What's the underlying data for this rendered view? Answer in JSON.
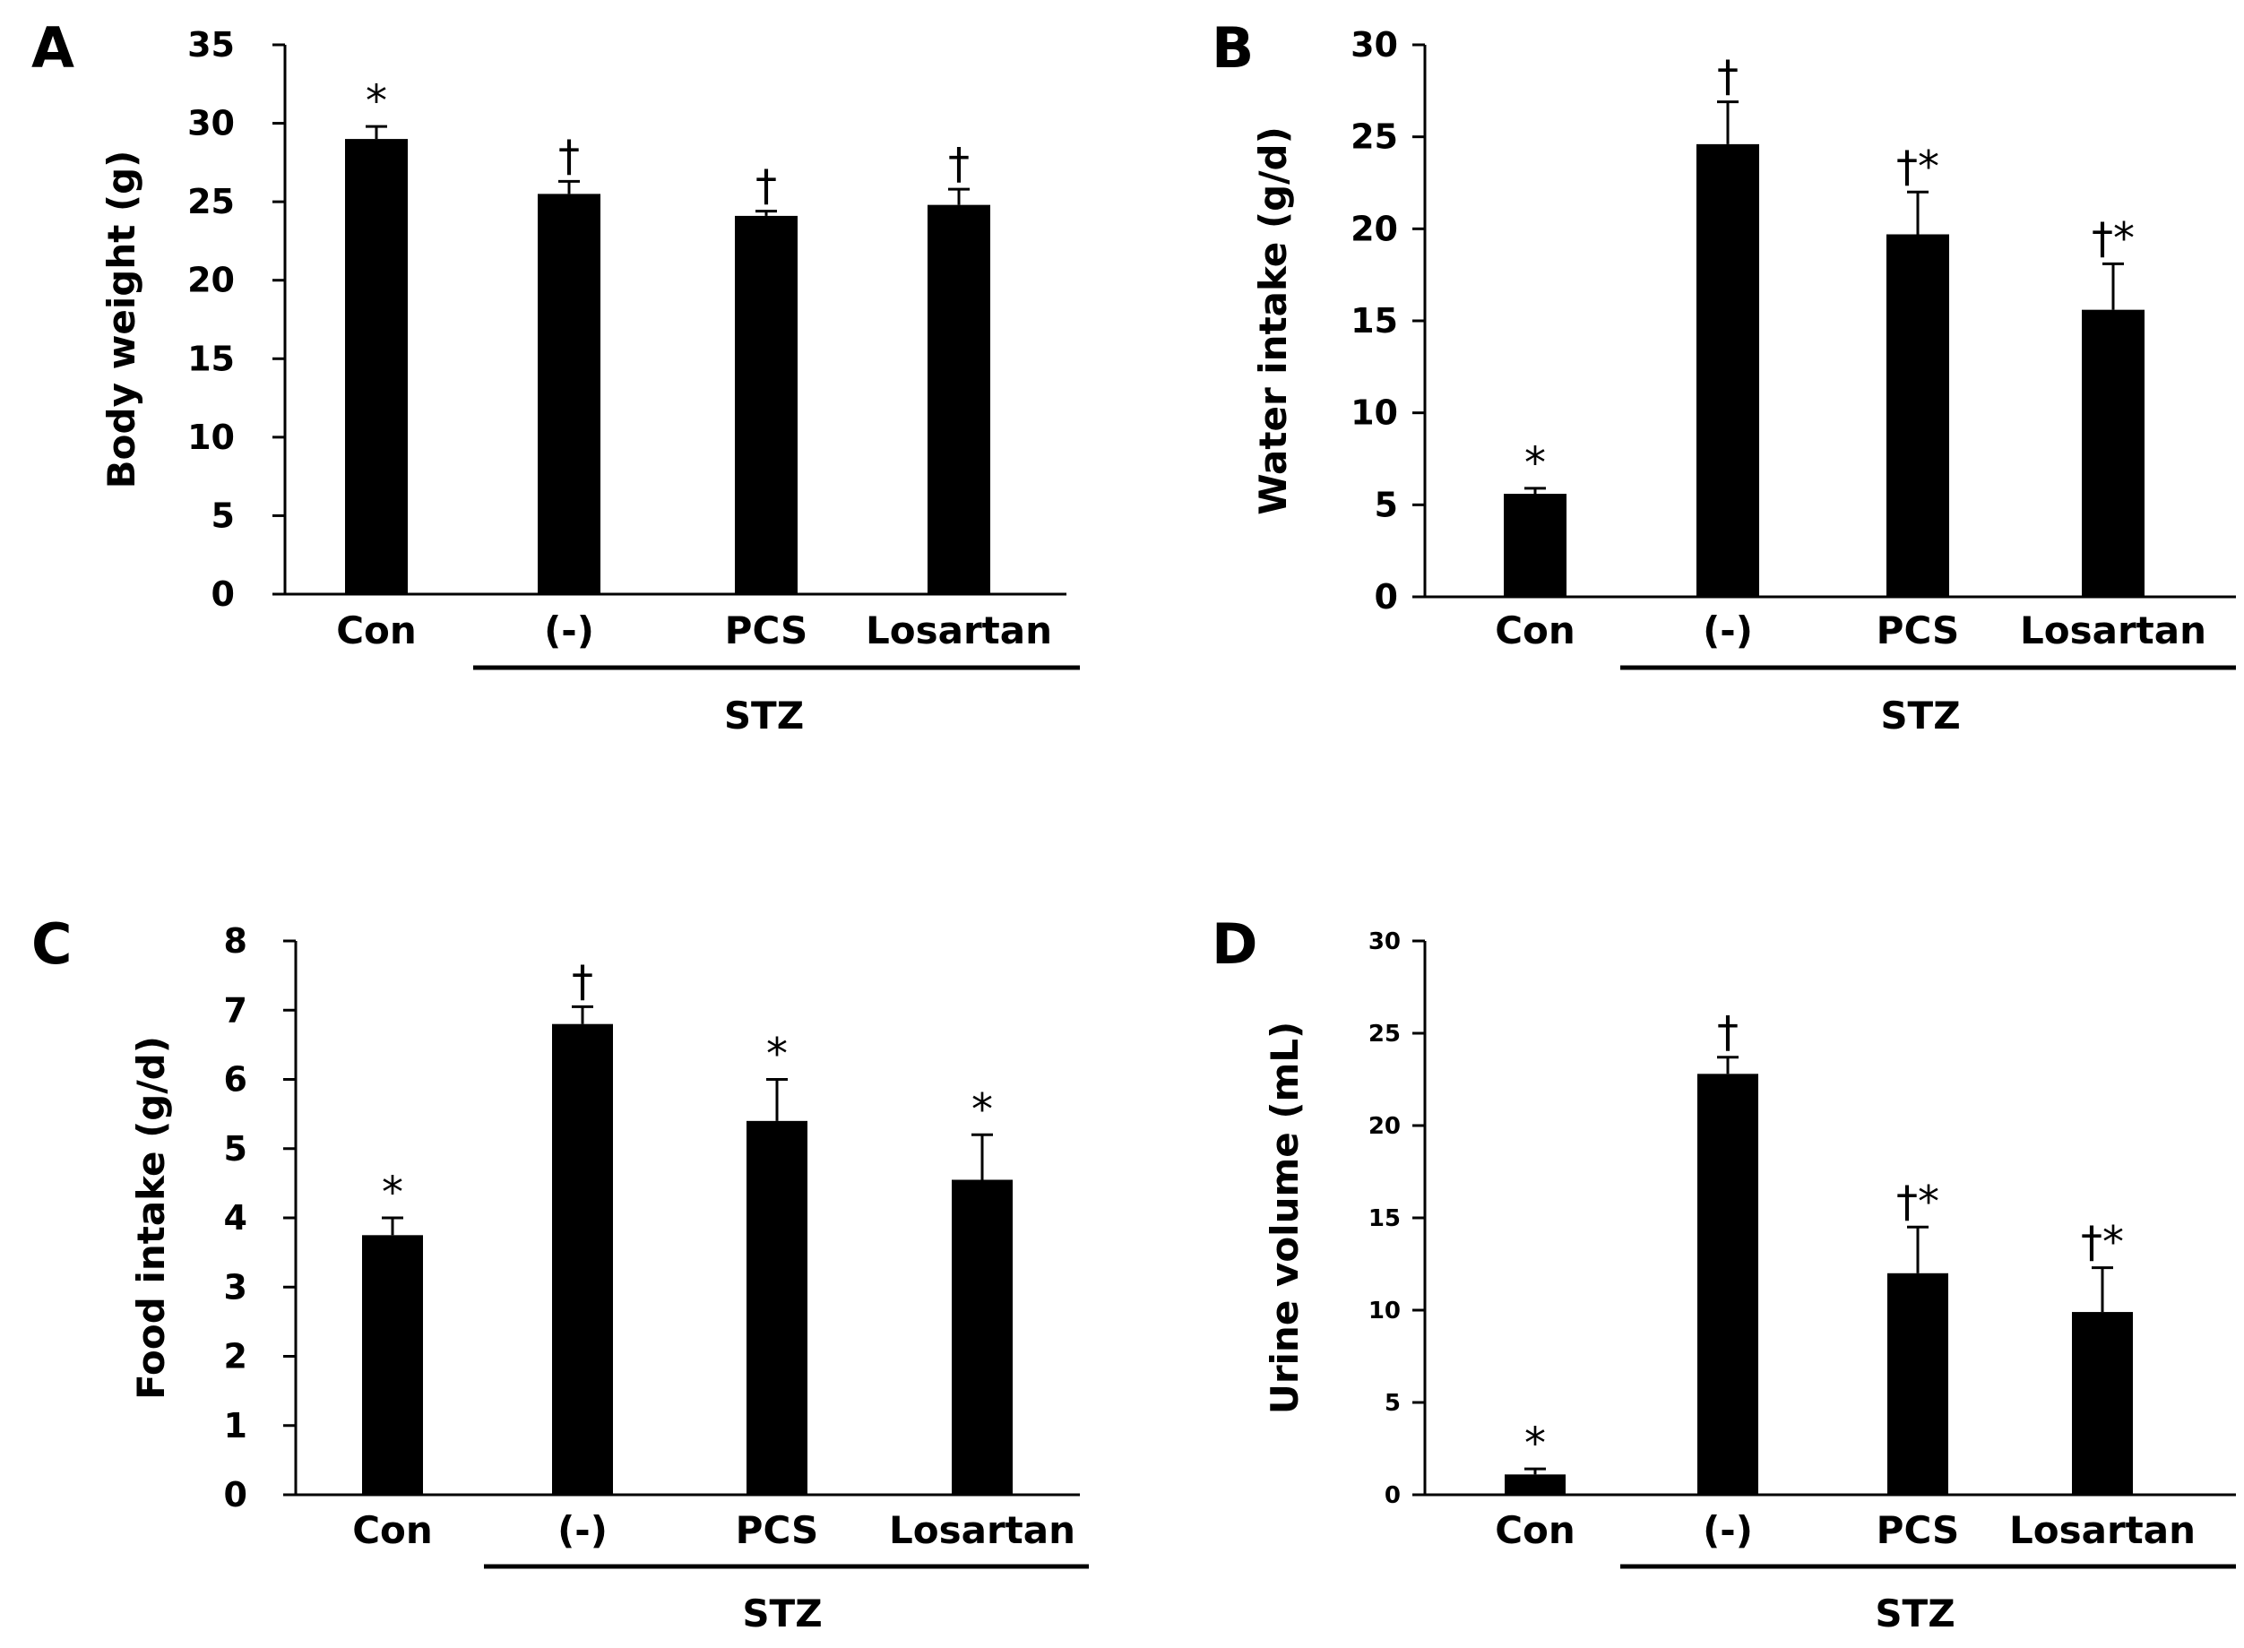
{
  "colors": {
    "bar": "#000000",
    "axis": "#000000",
    "background": "#ffffff"
  },
  "chart_data": [
    {
      "panel": "A",
      "type": "bar",
      "title": "",
      "xlabel": "",
      "ylabel": "Body weight (g)",
      "ylim": [
        0,
        35
      ],
      "yticks": [
        0,
        5,
        10,
        15,
        20,
        25,
        30,
        35
      ],
      "ytick_labels": [
        "0",
        "5",
        "10",
        "15",
        "20",
        "25",
        "30",
        "35"
      ],
      "categories": [
        "Con",
        "(-)",
        "PCS",
        "Losartan"
      ],
      "values": [
        29.0,
        25.5,
        24.1,
        24.8
      ],
      "errors": [
        0.8,
        0.8,
        0.3,
        1.0
      ],
      "significance": [
        "*",
        "†",
        "†",
        "†"
      ],
      "group_label": "STZ",
      "group_members": [
        "(-)",
        "PCS",
        "Losartan"
      ]
    },
    {
      "panel": "B",
      "type": "bar",
      "title": "",
      "xlabel": "",
      "ylabel": "Water intake (g/d)",
      "ylim": [
        0,
        30
      ],
      "yticks": [
        0,
        5,
        10,
        15,
        20,
        25,
        30
      ],
      "ytick_labels": [
        "0",
        "5",
        "10",
        "15",
        "20",
        "25",
        "30"
      ],
      "categories": [
        "Con",
        "(-)",
        "PCS",
        "Losartan"
      ],
      "values": [
        5.6,
        24.6,
        19.7,
        15.6
      ],
      "errors": [
        0.3,
        2.3,
        2.3,
        2.5
      ],
      "significance": [
        "*",
        "†",
        "†*",
        "†*"
      ],
      "group_label": "STZ",
      "group_members": [
        "(-)",
        "PCS",
        "Losartan"
      ]
    },
    {
      "panel": "C",
      "type": "bar",
      "title": "",
      "xlabel": "",
      "ylabel": "Food intake (g/d)",
      "ylim": [
        0,
        8
      ],
      "yticks": [
        0,
        1,
        2,
        3,
        4,
        5,
        6,
        7,
        8
      ],
      "ytick_labels": [
        "0",
        "1",
        "2",
        "3",
        "4",
        "5",
        "6",
        "7",
        "8"
      ],
      "categories": [
        "Con",
        "(-)",
        "PCS",
        "Losartan"
      ],
      "values": [
        3.75,
        6.8,
        5.4,
        4.55
      ],
      "errors": [
        0.25,
        0.25,
        0.6,
        0.65
      ],
      "significance": [
        "*",
        "†",
        "*",
        "*"
      ],
      "group_label": "STZ",
      "group_members": [
        "(-)",
        "PCS",
        "Losartan"
      ]
    },
    {
      "panel": "D",
      "type": "bar",
      "title": "",
      "xlabel": "",
      "ylabel": "Urine volume (mL)",
      "ylim": [
        0,
        30
      ],
      "yticks": [
        0,
        5,
        10,
        15,
        20,
        25,
        30
      ],
      "ytick_labels": [
        "0",
        "5",
        "10",
        "15",
        "20",
        "25",
        "30"
      ],
      "categories": [
        "Con",
        "(-)",
        "PCS",
        "Losartan"
      ],
      "values": [
        1.1,
        22.8,
        12.0,
        9.9
      ],
      "errors": [
        0.3,
        0.9,
        2.5,
        2.4
      ],
      "significance": [
        "*",
        "†",
        "†*",
        "†*"
      ],
      "group_label": "STZ",
      "group_members": [
        "(-)",
        "PCS",
        "Losartan"
      ]
    }
  ]
}
